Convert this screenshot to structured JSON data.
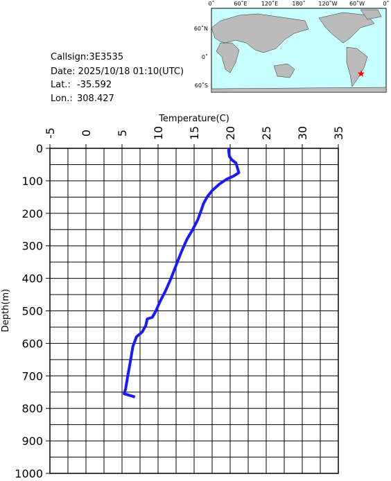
{
  "info": {
    "callsign": "Callsign:3E3535",
    "date": "Date:  2025/10/18 01:10(UTC)",
    "lat_label": "Lat.:",
    "lat": -35.592,
    "lon_label": "Lon.:",
    "lon": 308.427
  },
  "map": {
    "lon_labels": [
      "0˚",
      "60˚E",
      "120˚E",
      "180˚",
      "120˚W",
      "60˚W",
      "0˚"
    ],
    "lat_labels": [
      "60˚N",
      "0˚",
      "60˚S"
    ],
    "marker_color": "#ff0000"
  },
  "chart_data": {
    "type": "line",
    "x_label": "Temperature(C)",
    "y_label": "Depth(m)",
    "color": "#1a1aff",
    "x": [
      19.8,
      19.8,
      19.9,
      20.2,
      20.8,
      21.0,
      21.2,
      20.5,
      19.5,
      18.5,
      17.5,
      16.8,
      16.3,
      16.0,
      15.5,
      14.8,
      14.0,
      13.2,
      12.5,
      11.8,
      11.0,
      10.3,
      9.7,
      9.2,
      8.5,
      8.3,
      7.8,
      7.0,
      6.5,
      6.2,
      5.8,
      5.5,
      5.3,
      6.8
    ],
    "values": [
      0,
      10,
      25,
      35,
      45,
      60,
      75,
      85,
      95,
      110,
      130,
      150,
      170,
      190,
      220,
      250,
      280,
      320,
      360,
      400,
      440,
      470,
      500,
      520,
      525,
      545,
      565,
      580,
      610,
      650,
      700,
      740,
      755,
      765
    ],
    "xlim": [
      -5,
      35
    ],
    "xticks": [
      -5,
      0,
      5,
      10,
      15,
      20,
      25,
      30,
      35
    ],
    "x_minor_grid": [
      -2.5,
      2.5,
      7.5,
      12.5,
      17.5,
      22.5,
      27.5,
      32.5
    ],
    "ylim": [
      0,
      1000
    ],
    "y_inverted": true,
    "yticks": [
      0,
      100,
      200,
      300,
      400,
      500,
      600,
      700,
      800,
      900,
      1000
    ],
    "y_minor_grid": [
      50,
      150,
      250,
      350,
      450,
      550,
      650,
      750,
      850,
      950
    ],
    "grid": true
  }
}
